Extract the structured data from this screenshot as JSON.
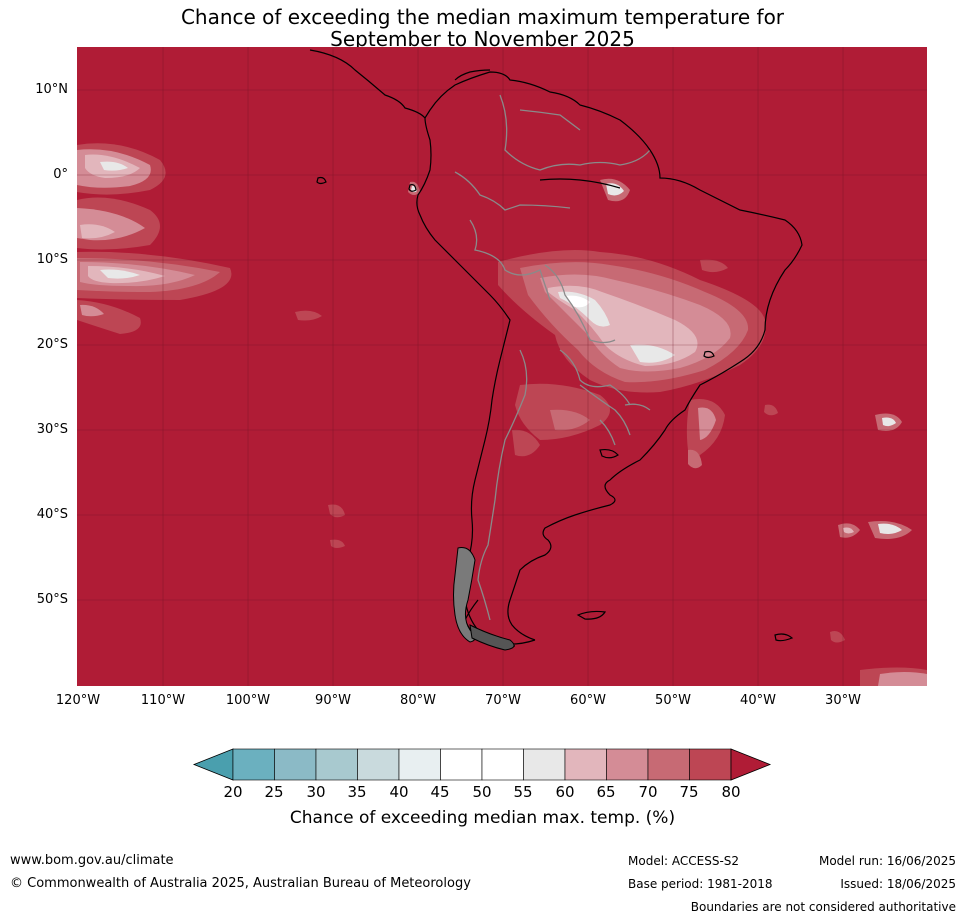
{
  "title_line1": "Chance of exceeding the median maximum temperature for",
  "title_line2": "September to November 2025",
  "lat_labels": [
    "10°N",
    "0°",
    "10°S",
    "20°S",
    "30°S",
    "40°S",
    "50°S"
  ],
  "lon_labels": [
    "120°W",
    "110°W",
    "100°W",
    "90°W",
    "80°W",
    "70°W",
    "60°W",
    "50°W",
    "40°W",
    "30°W"
  ],
  "colorbar": {
    "ticks": [
      "20",
      "25",
      "30",
      "35",
      "40",
      "45",
      "50",
      "55",
      "60",
      "65",
      "70",
      "75",
      "80"
    ],
    "colors": [
      "#4a9fae",
      "#6bb0bf",
      "#8bbac6",
      "#a8c9cf",
      "#c9dadd",
      "#e8eff1",
      "#ffffff",
      "#ffffff",
      "#e8e8e8",
      "#e2b6bc",
      "#d48c96",
      "#c76a74",
      "#bd4654",
      "#b01c36"
    ],
    "label": "Chance of exceeding median max. temp. (%)"
  },
  "map_colors": {
    "base": "#b01c36",
    "c75": "#bd4654",
    "c70": "#c76a74",
    "c65": "#d48c96",
    "c60": "#e2b6bc",
    "c55": "#e8e8e8",
    "c50": "#ffffff"
  },
  "footer": {
    "website": "www.bom.gov.au/climate",
    "copyright": "© Commonwealth of Australia 2025, Australian Bureau of Meteorology",
    "model": "Model: ACCESS-S2",
    "base_period": "Base period: 1981-2018",
    "model_run": "Model run: 16/06/2025",
    "issued": "Issued: 18/06/2025",
    "disclaimer": "Boundaries are not considered authoritative"
  }
}
